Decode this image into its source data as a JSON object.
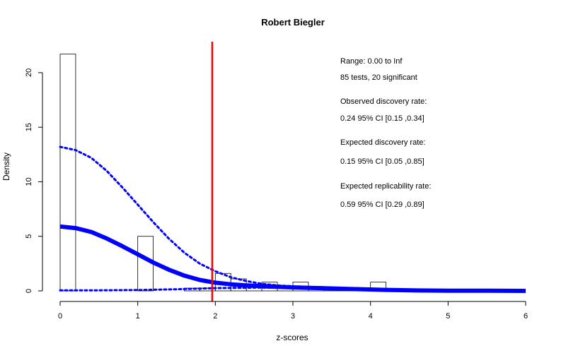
{
  "chart_data": {
    "type": "bar",
    "title": "Robert Biegler",
    "xlabel": "z-scores",
    "ylabel": "Density",
    "xlim": [
      0,
      6
    ],
    "ylim": [
      0,
      22
    ],
    "x_ticks": [
      "0",
      "1",
      "2",
      "3",
      "4",
      "5",
      "6"
    ],
    "y_ticks": [
      "0",
      "5",
      "10",
      "15",
      "20"
    ],
    "histogram": {
      "bin_width": 0.2,
      "bins": [
        {
          "x0": 0.0,
          "height": 21.7
        },
        {
          "x0": 1.0,
          "height": 5.0
        },
        {
          "x0": 1.6,
          "height": 0.25
        },
        {
          "x0": 1.8,
          "height": 0.25
        },
        {
          "x0": 2.0,
          "height": 1.6
        },
        {
          "x0": 2.2,
          "height": 1.1
        },
        {
          "x0": 2.4,
          "height": 0.5
        },
        {
          "x0": 2.6,
          "height": 0.8
        },
        {
          "x0": 2.8,
          "height": 0.4
        },
        {
          "x0": 3.0,
          "height": 0.8
        },
        {
          "x0": 3.2,
          "height": 0.4
        },
        {
          "x0": 3.4,
          "height": 0.3
        },
        {
          "x0": 3.6,
          "height": 0.3
        },
        {
          "x0": 4.0,
          "height": 0.8
        }
      ]
    },
    "significance_line_x": 1.96,
    "fitted_curve": {
      "x": [
        0,
        0.2,
        0.4,
        0.6,
        0.8,
        1.0,
        1.2,
        1.4,
        1.6,
        1.8,
        2.0,
        2.2,
        2.4,
        2.6,
        2.8,
        3.0,
        3.4,
        3.8,
        4.2,
        4.6,
        5.0,
        5.5,
        6.0
      ],
      "y": [
        5.9,
        5.75,
        5.4,
        4.8,
        4.1,
        3.35,
        2.6,
        1.95,
        1.4,
        1.0,
        0.75,
        0.6,
        0.5,
        0.43,
        0.37,
        0.32,
        0.24,
        0.16,
        0.09,
        0.04,
        0.02,
        0.01,
        0.0
      ]
    },
    "ci_upper_curve": {
      "x": [
        0,
        0.2,
        0.4,
        0.6,
        0.8,
        1.0,
        1.2,
        1.4,
        1.6,
        1.8,
        2.0,
        2.2,
        2.4,
        2.6,
        2.8,
        3.0,
        3.2,
        3.4,
        3.6
      ],
      "y": [
        13.2,
        12.9,
        12.2,
        11.0,
        9.5,
        7.9,
        6.3,
        4.8,
        3.5,
        2.5,
        1.8,
        1.25,
        0.9,
        0.65,
        0.5,
        0.42,
        0.36,
        0.3,
        0.25
      ]
    },
    "ci_lower_curve": {
      "x": [
        0,
        0.5,
        1.0,
        1.5,
        2.0,
        2.5,
        3.0,
        3.5,
        4.0
      ],
      "y": [
        0.05,
        0.05,
        0.08,
        0.15,
        0.25,
        0.3,
        0.3,
        0.25,
        0.15
      ]
    },
    "annotations": [
      "Range: 0.00 to Inf",
      "85 tests, 20 significant",
      "Observed discovery rate:",
      "0.24  95% CI [0.15 ,0.34]",
      "Expected discovery rate:",
      "0.15  95% CI [0.05 ,0.85]",
      "Expected replicability rate:",
      "0.59  95% CI [0.29 ,0.89]"
    ],
    "colors": {
      "bar_stroke": "#000000",
      "curve": "#0000ff",
      "significance_line": "#ff0000"
    },
    "grid": false
  }
}
